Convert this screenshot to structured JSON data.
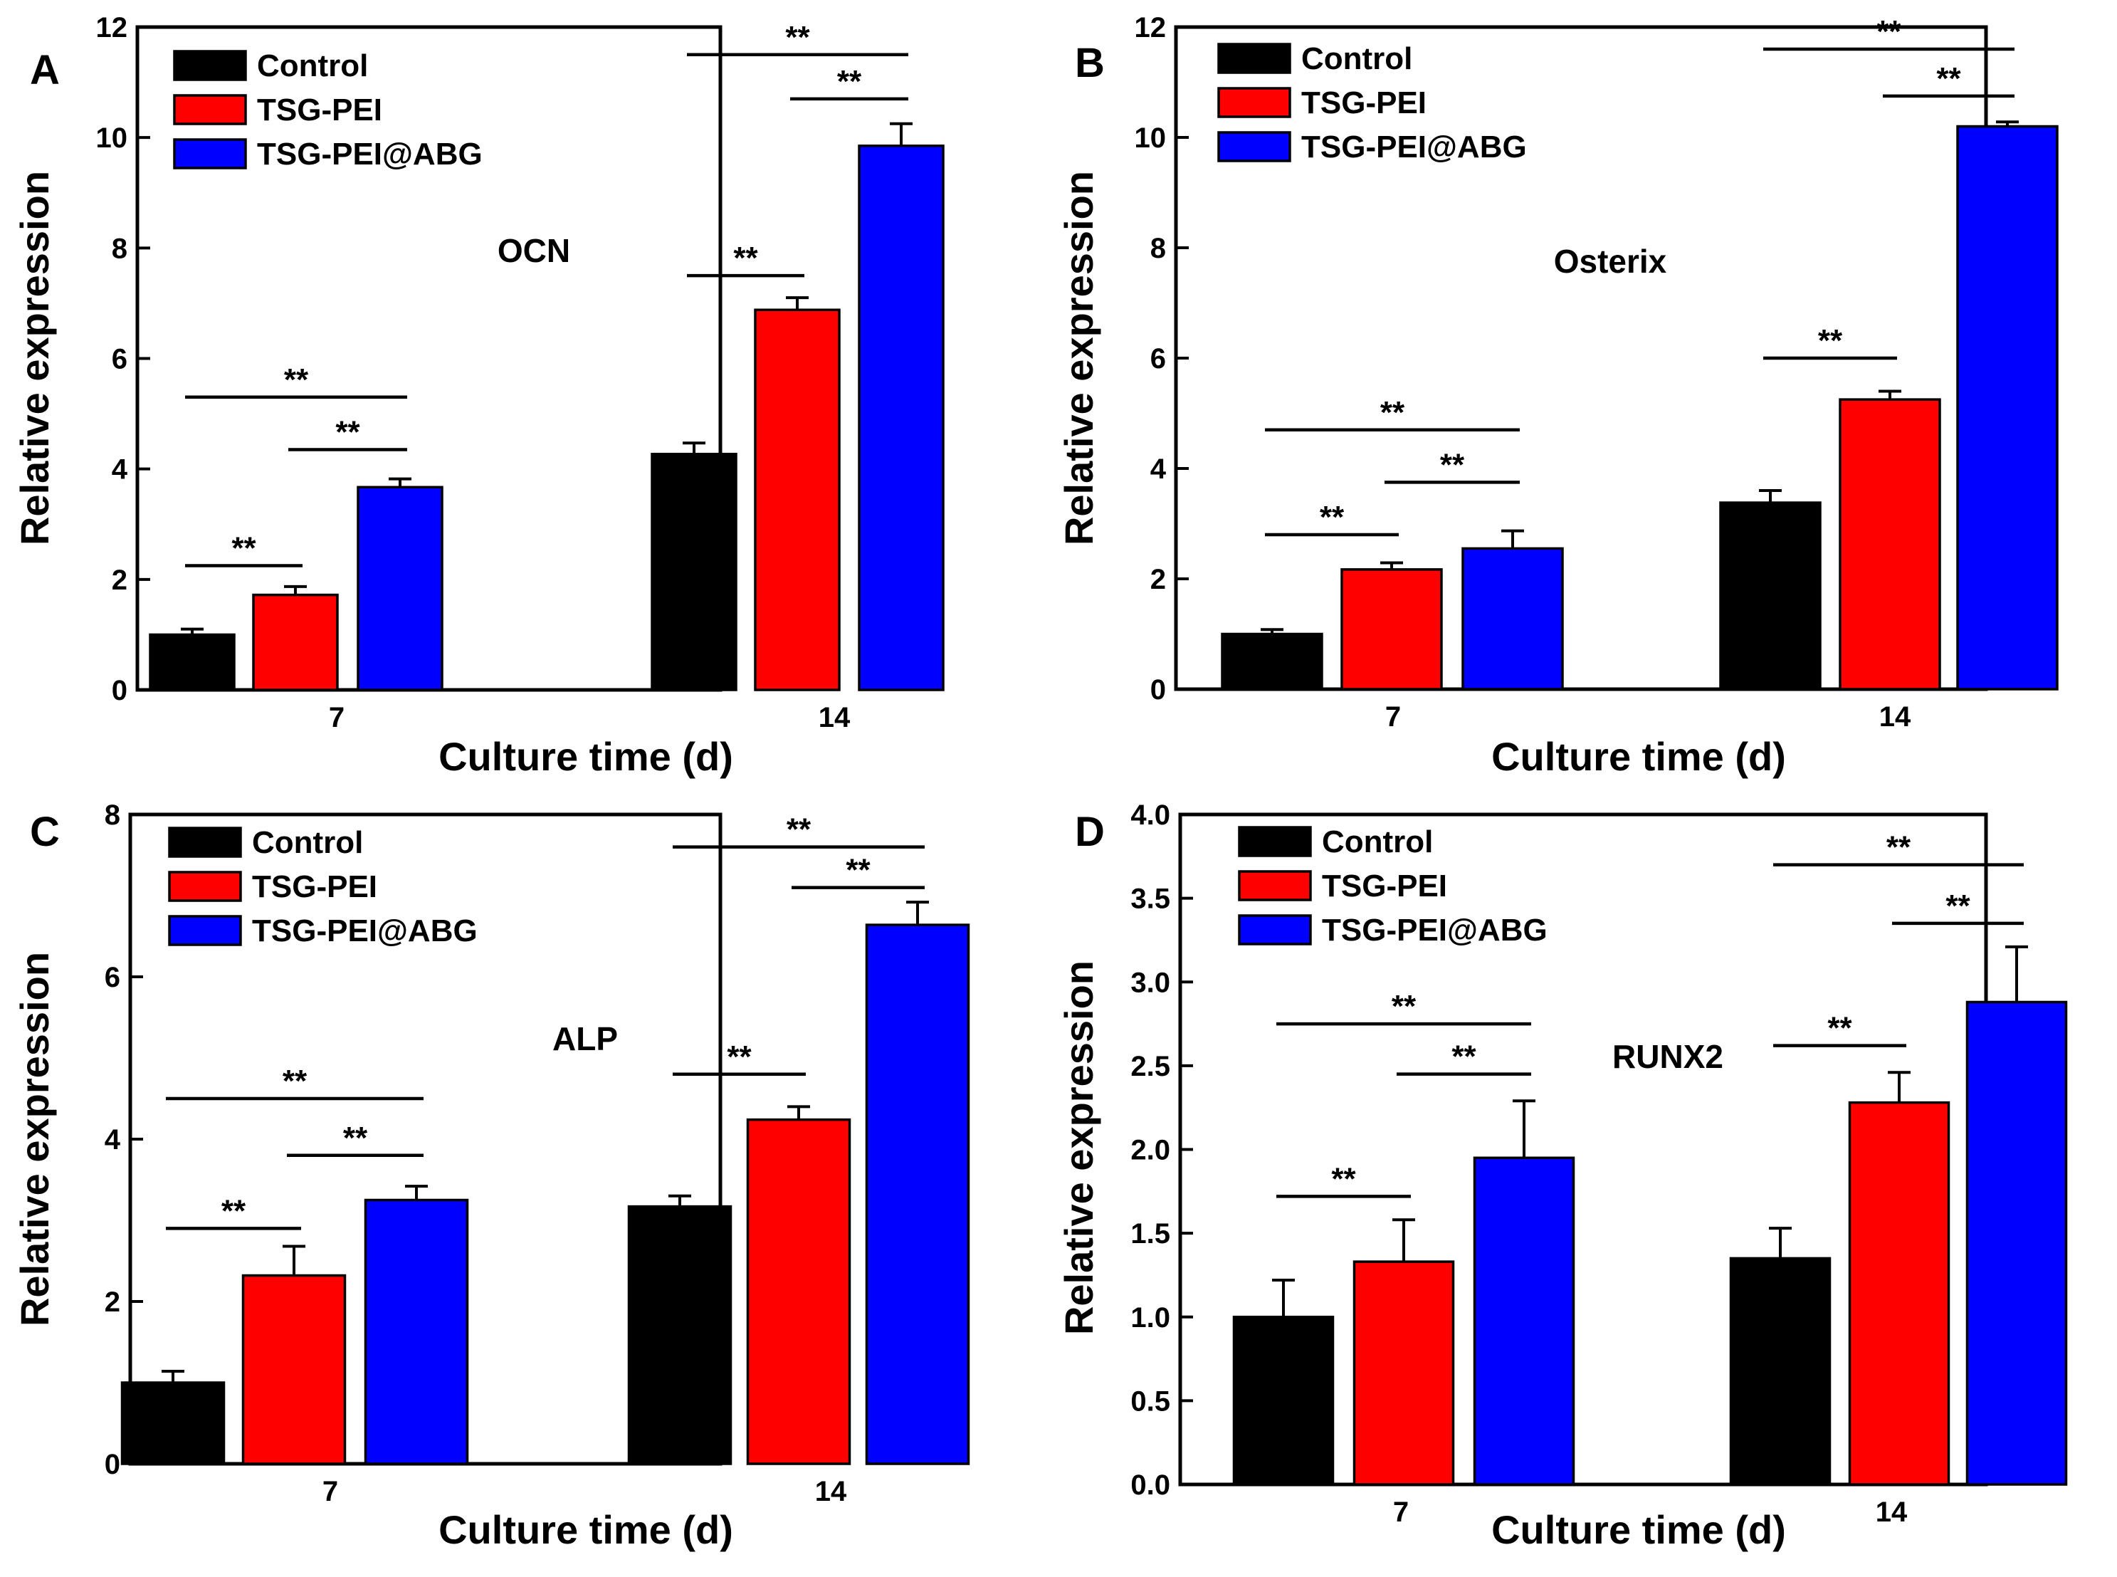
{
  "figure": {
    "colors": {
      "Control": "#000000",
      "TSG-PEI": "#ff0000",
      "TSG-PEI@ABG": "#0000ff"
    }
  },
  "chart_data": [
    {
      "type": "bar",
      "panel_label": "A",
      "title": "OCN",
      "xlabel": "Culture time (d)",
      "ylabel": "Relative expression",
      "categories": [
        "7",
        "14"
      ],
      "ylim": [
        0,
        12
      ],
      "yticks": [
        0,
        2,
        4,
        6,
        8,
        10,
        12
      ],
      "ytick_labels": [
        "0",
        "2",
        "4",
        "6",
        "8",
        "10",
        "12"
      ],
      "legend": [
        "Control",
        "TSG-PEI",
        "TSG-PEI@ABG"
      ],
      "series": [
        {
          "name": "Control",
          "values": [
            1.0,
            4.27
          ],
          "errors": [
            0.1,
            0.2
          ]
        },
        {
          "name": "TSG-PEI",
          "values": [
            1.72,
            6.88
          ],
          "errors": [
            0.15,
            0.22
          ]
        },
        {
          "name": "TSG-PEI@ABG",
          "values": [
            3.67,
            9.85
          ],
          "errors": [
            0.15,
            0.4
          ]
        }
      ],
      "significance": [
        {
          "group": 0,
          "from": 0,
          "to": 1,
          "y": 2.25,
          "label": "**"
        },
        {
          "group": 0,
          "from": 1,
          "to": 2,
          "y": 4.35,
          "label": "**"
        },
        {
          "group": 0,
          "from": 0,
          "to": 2,
          "y": 5.3,
          "label": "**"
        },
        {
          "group": 1,
          "from": 0,
          "to": 1,
          "y": 7.5,
          "label": "**"
        },
        {
          "group": 1,
          "from": 1,
          "to": 2,
          "y": 10.7,
          "label": "**"
        },
        {
          "group": 1,
          "from": 0,
          "to": 2,
          "y": 11.5,
          "label": "**"
        }
      ]
    },
    {
      "type": "bar",
      "panel_label": "B",
      "title": "Osterix",
      "xlabel": "Culture time (d)",
      "ylabel": "Relative expression",
      "categories": [
        "7",
        "14"
      ],
      "ylim": [
        0,
        12
      ],
      "yticks": [
        0,
        2,
        4,
        6,
        8,
        10,
        12
      ],
      "ytick_labels": [
        "0",
        "2",
        "4",
        "6",
        "8",
        "10",
        "12"
      ],
      "legend": [
        "Control",
        "TSG-PEI",
        "TSG-PEI@ABG"
      ],
      "series": [
        {
          "name": "Control",
          "values": [
            1.0,
            3.38
          ],
          "errors": [
            0.08,
            0.22
          ]
        },
        {
          "name": "TSG-PEI",
          "values": [
            2.17,
            5.25
          ],
          "errors": [
            0.12,
            0.15
          ]
        },
        {
          "name": "TSG-PEI@ABG",
          "values": [
            2.55,
            10.2
          ],
          "errors": [
            0.32,
            0.08
          ]
        }
      ],
      "significance": [
        {
          "group": 0,
          "from": 0,
          "to": 1,
          "y": 2.8,
          "label": "**"
        },
        {
          "group": 0,
          "from": 1,
          "to": 2,
          "y": 3.75,
          "label": "**"
        },
        {
          "group": 0,
          "from": 0,
          "to": 2,
          "y": 4.7,
          "label": "**"
        },
        {
          "group": 1,
          "from": 0,
          "to": 1,
          "y": 6.0,
          "label": "**"
        },
        {
          "group": 1,
          "from": 1,
          "to": 2,
          "y": 10.75,
          "label": "**"
        },
        {
          "group": 1,
          "from": 0,
          "to": 2,
          "y": 11.6,
          "label": "**"
        }
      ]
    },
    {
      "type": "bar",
      "panel_label": "C",
      "title": "ALP",
      "xlabel": "Culture time (d)",
      "ylabel": "Relative expression",
      "categories": [
        "7",
        "14"
      ],
      "ylim": [
        0,
        8
      ],
      "yticks": [
        0,
        2,
        4,
        6,
        8
      ],
      "ytick_labels": [
        "0",
        "2",
        "4",
        "6",
        "8"
      ],
      "legend": [
        "Control",
        "TSG-PEI",
        "TSG-PEI@ABG"
      ],
      "series": [
        {
          "name": "Control",
          "values": [
            1.0,
            3.17
          ],
          "errors": [
            0.14,
            0.13
          ]
        },
        {
          "name": "TSG-PEI",
          "values": [
            2.32,
            4.24
          ],
          "errors": [
            0.36,
            0.16
          ]
        },
        {
          "name": "TSG-PEI@ABG",
          "values": [
            3.25,
            6.64
          ],
          "errors": [
            0.17,
            0.28
          ]
        }
      ],
      "significance": [
        {
          "group": 0,
          "from": 0,
          "to": 1,
          "y": 2.9,
          "label": "**"
        },
        {
          "group": 0,
          "from": 1,
          "to": 2,
          "y": 3.8,
          "label": "**"
        },
        {
          "group": 0,
          "from": 0,
          "to": 2,
          "y": 4.5,
          "label": "**"
        },
        {
          "group": 1,
          "from": 0,
          "to": 1,
          "y": 4.8,
          "label": "**"
        },
        {
          "group": 1,
          "from": 1,
          "to": 2,
          "y": 7.1,
          "label": "**"
        },
        {
          "group": 1,
          "from": 0,
          "to": 2,
          "y": 7.6,
          "label": "**"
        }
      ]
    },
    {
      "type": "bar",
      "panel_label": "D",
      "title": "RUNX2",
      "xlabel": "Culture time (d)",
      "ylabel": "Relative expression",
      "categories": [
        "7",
        "14"
      ],
      "ylim": [
        0,
        4.0
      ],
      "yticks": [
        0,
        0.5,
        1.0,
        1.5,
        2.0,
        2.5,
        3.0,
        3.5,
        4.0
      ],
      "ytick_labels": [
        "0.0",
        "0.5",
        "1.0",
        "1.5",
        "2.0",
        "2.5",
        "3.0",
        "3.5",
        "4.0"
      ],
      "legend": [
        "Control",
        "TSG-PEI",
        "TSG-PEI@ABG"
      ],
      "series": [
        {
          "name": "Control",
          "values": [
            1.0,
            1.35
          ],
          "errors": [
            0.22,
            0.18
          ]
        },
        {
          "name": "TSG-PEI",
          "values": [
            1.33,
            2.28
          ],
          "errors": [
            0.25,
            0.18
          ]
        },
        {
          "name": "TSG-PEI@ABG",
          "values": [
            1.95,
            2.88
          ],
          "errors": [
            0.34,
            0.33
          ]
        }
      ],
      "significance": [
        {
          "group": 0,
          "from": 0,
          "to": 1,
          "y": 1.72,
          "label": "**"
        },
        {
          "group": 0,
          "from": 1,
          "to": 2,
          "y": 2.45,
          "label": "**"
        },
        {
          "group": 0,
          "from": 0,
          "to": 2,
          "y": 2.75,
          "label": "**"
        },
        {
          "group": 1,
          "from": 0,
          "to": 1,
          "y": 2.62,
          "label": "**"
        },
        {
          "group": 1,
          "from": 1,
          "to": 2,
          "y": 3.35,
          "label": "**"
        },
        {
          "group": 1,
          "from": 0,
          "to": 2,
          "y": 3.7,
          "label": "**"
        }
      ]
    }
  ]
}
